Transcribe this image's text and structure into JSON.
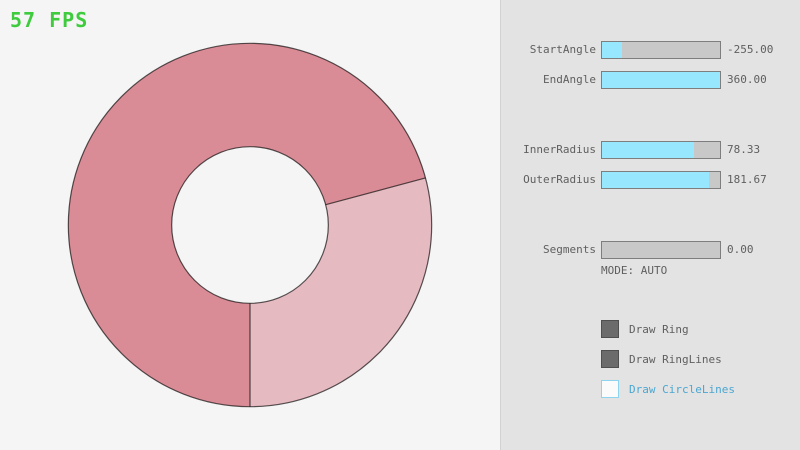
{
  "fps": "57 FPS",
  "ring": {
    "color_overlap": "#d98c96",
    "color_single": "#e6bac1",
    "outline_color": "#3a3a3a",
    "start_angle": -255.0,
    "end_angle": 360.0,
    "inner_radius": 78.33,
    "outer_radius": 181.67
  },
  "panel": {
    "sliders": [
      {
        "label": "StartAngle",
        "value": "-255.00",
        "fill": 17
      },
      {
        "label": "EndAngle",
        "value": "360.00",
        "fill": 100
      },
      {
        "label": "InnerRadius",
        "value": "78.33",
        "fill": 78
      },
      {
        "label": "OuterRadius",
        "value": "181.67",
        "fill": 91
      },
      {
        "label": "Segments",
        "value": "0.00",
        "fill": 0
      }
    ],
    "mode_text": "MODE: AUTO",
    "checkboxes": [
      {
        "label": "Draw Ring",
        "checked": true
      },
      {
        "label": "Draw RingLines",
        "checked": true
      },
      {
        "label": "Draw CircleLines",
        "checked": false
      }
    ]
  },
  "colors": {
    "fps_green": "#3ecb3e",
    "slider_fill_cyan": "#97e8ff",
    "panel_gray": "#e3e3e3",
    "background": "#f5f5f5",
    "checkbox_blue_border": "#8fd4ee",
    "checkbox_blue_text": "#4ba6d1"
  }
}
